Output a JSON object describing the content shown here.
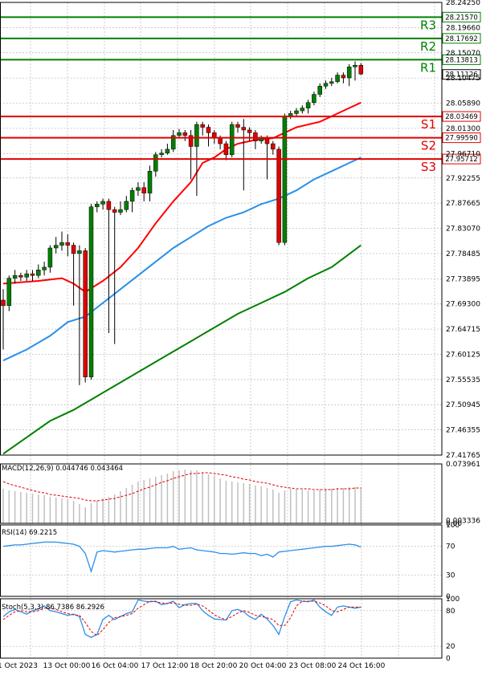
{
  "chart_data": [
    {
      "type": "candlestick",
      "panel": "price",
      "y_ticks": [
        "28.24250",
        "28.21570",
        "28.19660",
        "28.17692",
        "28.15070",
        "28.13813",
        "28.11126",
        "28.10475",
        "28.05890",
        "28.03469",
        "28.01300",
        "27.99590",
        "27.96710",
        "27.95712",
        "27.92255",
        "27.87665",
        "27.83070",
        "27.78485",
        "27.73895",
        "27.69300",
        "27.64715",
        "27.60125",
        "27.55535",
        "27.50945",
        "27.46355",
        "27.41765"
      ],
      "ylim": [
        27.41765,
        28.2425
      ],
      "levels": [
        {
          "name": "R3",
          "value": 28.2157,
          "label": "28.21570",
          "color": "#008000"
        },
        {
          "name": "R2",
          "value": 28.17692,
          "label": "28.17692",
          "color": "#008000"
        },
        {
          "name": "R1",
          "value": 28.13813,
          "label": "28.13813",
          "color": "#008000"
        },
        {
          "name": "S1",
          "value": 28.03469,
          "label": "28.03469",
          "color": "#e00000"
        },
        {
          "name": "S2",
          "value": 27.9959,
          "label": "27.99590",
          "color": "#e00000"
        },
        {
          "name": "S3",
          "value": 27.95712,
          "label": "27.95712",
          "color": "#e00000"
        }
      ],
      "last_price": {
        "value": 28.11126,
        "label": "28.11126"
      },
      "candles": [
        [
          27.7,
          27.69,
          27.72,
          27.61
        ],
        [
          27.69,
          27.74,
          27.745,
          27.68
        ],
        [
          27.74,
          27.745,
          27.755,
          27.73
        ],
        [
          27.745,
          27.742,
          27.75,
          27.735
        ],
        [
          27.742,
          27.748,
          27.755,
          27.735
        ],
        [
          27.748,
          27.745,
          27.755,
          27.735
        ],
        [
          27.745,
          27.755,
          27.765,
          27.74
        ],
        [
          27.755,
          27.76,
          27.77,
          27.745
        ],
        [
          27.76,
          27.795,
          27.8,
          27.75
        ],
        [
          27.795,
          27.8,
          27.815,
          27.785
        ],
        [
          27.8,
          27.805,
          27.825,
          27.79
        ],
        [
          27.805,
          27.8,
          27.82,
          27.78
        ],
        [
          27.8,
          27.785,
          27.805,
          27.69
        ],
        [
          27.785,
          27.79,
          27.8,
          27.545
        ],
        [
          27.79,
          27.56,
          27.795,
          27.55
        ],
        [
          27.56,
          27.87,
          27.875,
          27.555
        ],
        [
          27.87,
          27.875,
          27.88,
          27.86
        ],
        [
          27.875,
          27.88,
          27.885,
          27.865
        ],
        [
          27.88,
          27.865,
          27.885,
          27.64
        ],
        [
          27.865,
          27.86,
          27.87,
          27.62
        ],
        [
          27.86,
          27.865,
          27.88,
          27.855
        ],
        [
          27.865,
          27.88,
          27.89,
          27.86
        ],
        [
          27.88,
          27.9,
          27.905,
          27.86
        ],
        [
          27.9,
          27.905,
          27.915,
          27.89
        ],
        [
          27.905,
          27.895,
          27.915,
          27.88
        ],
        [
          27.895,
          27.935,
          27.945,
          27.88
        ],
        [
          27.935,
          27.965,
          27.97,
          27.925
        ],
        [
          27.965,
          27.968,
          27.975,
          27.96
        ],
        [
          27.968,
          27.975,
          27.985,
          27.965
        ],
        [
          27.975,
          28.0,
          28.01,
          27.97
        ],
        [
          28.0,
          28.005,
          28.012,
          27.995
        ],
        [
          28.005,
          28.0,
          28.01,
          27.99
        ],
        [
          28.0,
          27.98,
          28.01,
          27.92
        ],
        [
          27.98,
          28.02,
          28.025,
          27.89
        ],
        [
          28.02,
          28.015,
          28.025,
          28.0
        ],
        [
          28.015,
          28.005,
          28.02,
          27.98
        ],
        [
          28.005,
          27.995,
          28.01,
          27.985
        ],
        [
          27.995,
          27.985,
          28.0,
          27.975
        ],
        [
          27.985,
          27.965,
          27.99,
          27.955
        ],
        [
          27.965,
          28.02,
          28.025,
          27.96
        ],
        [
          28.02,
          28.015,
          28.025,
          28.005
        ],
        [
          28.015,
          28.01,
          28.03,
          27.9
        ],
        [
          28.01,
          28.005,
          28.015,
          27.99
        ],
        [
          28.005,
          27.99,
          28.01,
          27.975
        ],
        [
          27.99,
          27.995,
          28.0,
          27.985
        ],
        [
          27.995,
          27.985,
          28.0,
          27.92
        ],
        [
          27.985,
          27.975,
          27.99,
          27.965
        ],
        [
          27.975,
          27.805,
          27.98,
          27.8
        ],
        [
          27.805,
          28.035,
          28.04,
          27.8
        ],
        [
          28.035,
          28.04,
          28.045,
          28.03
        ],
        [
          28.04,
          28.045,
          28.05,
          28.035
        ],
        [
          28.045,
          28.05,
          28.055,
          28.04
        ],
        [
          28.05,
          28.06,
          28.065,
          28.04
        ],
        [
          28.06,
          28.075,
          28.08,
          28.055
        ],
        [
          28.075,
          28.09,
          28.095,
          28.07
        ],
        [
          28.09,
          28.095,
          28.1,
          28.085
        ],
        [
          28.095,
          28.098,
          28.105,
          28.09
        ],
        [
          28.098,
          28.11,
          28.115,
          28.095
        ],
        [
          28.11,
          28.105,
          28.115,
          28.095
        ],
        [
          28.105,
          28.125,
          28.13,
          28.09
        ],
        [
          28.125,
          28.128,
          28.135,
          28.1
        ],
        [
          28.128,
          28.112,
          28.132,
          28.11
        ]
      ],
      "moving_averages": [
        {
          "color": "#ff0000",
          "points": [
            [
              0,
              27.73
            ],
            [
              6,
              27.735
            ],
            [
              10,
              27.74
            ],
            [
              12,
              27.73
            ],
            [
              14,
              27.715
            ],
            [
              17,
              27.735
            ],
            [
              20,
              27.76
            ],
            [
              23,
              27.795
            ],
            [
              26,
              27.84
            ],
            [
              29,
              27.88
            ],
            [
              32,
              27.915
            ],
            [
              34,
              27.95
            ],
            [
              36,
              27.96
            ],
            [
              38,
              27.975
            ],
            [
              40,
              27.985
            ],
            [
              43,
              27.992
            ],
            [
              46,
              27.995
            ],
            [
              48,
              28.005
            ],
            [
              50,
              28.015
            ],
            [
              52,
              28.02
            ],
            [
              54,
              28.025
            ],
            [
              56,
              28.035
            ],
            [
              58,
              28.045
            ],
            [
              61,
              28.06
            ]
          ]
        },
        {
          "color": "#2a8fe8",
          "points": [
            [
              0,
              27.59
            ],
            [
              4,
              27.61
            ],
            [
              8,
              27.635
            ],
            [
              11,
              27.66
            ],
            [
              14,
              27.67
            ],
            [
              17,
              27.695
            ],
            [
              20,
              27.72
            ],
            [
              23,
              27.745
            ],
            [
              26,
              27.77
            ],
            [
              29,
              27.795
            ],
            [
              32,
              27.815
            ],
            [
              35,
              27.835
            ],
            [
              38,
              27.85
            ],
            [
              41,
              27.86
            ],
            [
              44,
              27.875
            ],
            [
              47,
              27.885
            ],
            [
              50,
              27.9
            ],
            [
              53,
              27.92
            ],
            [
              56,
              27.935
            ],
            [
              59,
              27.95
            ],
            [
              61,
              27.96
            ]
          ]
        },
        {
          "color": "#008000",
          "points": [
            [
              0,
              27.42
            ],
            [
              4,
              27.45
            ],
            [
              8,
              27.48
            ],
            [
              12,
              27.5
            ],
            [
              16,
              27.525
            ],
            [
              20,
              27.55
            ],
            [
              24,
              27.575
            ],
            [
              28,
              27.6
            ],
            [
              32,
              27.625
            ],
            [
              36,
              27.65
            ],
            [
              40,
              27.675
            ],
            [
              44,
              27.695
            ],
            [
              48,
              27.715
            ],
            [
              52,
              27.74
            ],
            [
              56,
              27.76
            ],
            [
              61,
              27.8
            ]
          ]
        }
      ]
    },
    {
      "type": "bar",
      "panel": "macd",
      "title": "MACD(12,26,9) 0.044746 0.043464",
      "y_ticks": [
        "0.073961",
        "0.003336",
        "0.00"
      ],
      "ylim": [
        0.0,
        0.073961
      ],
      "values": [
        0.043,
        0.041,
        0.04,
        0.039,
        0.038,
        0.037,
        0.036,
        0.035,
        0.033,
        0.032,
        0.031,
        0.03,
        0.028,
        0.024,
        0.02,
        0.025,
        0.028,
        0.031,
        0.033,
        0.036,
        0.04,
        0.044,
        0.048,
        0.052,
        0.054,
        0.056,
        0.058,
        0.06,
        0.062,
        0.065,
        0.066,
        0.067,
        0.066,
        0.066,
        0.063,
        0.061,
        0.059,
        0.056,
        0.053,
        0.052,
        0.051,
        0.05,
        0.049,
        0.047,
        0.046,
        0.044,
        0.042,
        0.038,
        0.041,
        0.043,
        0.042,
        0.042,
        0.041,
        0.041,
        0.042,
        0.043,
        0.043,
        0.044,
        0.044,
        0.045,
        0.045,
        0.045
      ],
      "signal": [
        0.052,
        0.049,
        0.047,
        0.045,
        0.043,
        0.041,
        0.039,
        0.038,
        0.036,
        0.035,
        0.034,
        0.033,
        0.032,
        0.031,
        0.029,
        0.028,
        0.028,
        0.029,
        0.03,
        0.031,
        0.033,
        0.035,
        0.037,
        0.04,
        0.043,
        0.045,
        0.048,
        0.051,
        0.053,
        0.056,
        0.058,
        0.06,
        0.062,
        0.062,
        0.063,
        0.063,
        0.062,
        0.061,
        0.06,
        0.058,
        0.057,
        0.055,
        0.054,
        0.052,
        0.051,
        0.05,
        0.048,
        0.046,
        0.045,
        0.044,
        0.043,
        0.043,
        0.043,
        0.042,
        0.042,
        0.042,
        0.042,
        0.043,
        0.043,
        0.043,
        0.044,
        0.044
      ]
    },
    {
      "type": "line",
      "panel": "rsi",
      "title": "RSI(14) 69.2215",
      "y_ticks": [
        "100",
        "70",
        "30",
        "0"
      ],
      "ylim": [
        0,
        100
      ],
      "values": [
        70,
        71,
        72,
        72,
        73,
        74,
        75,
        76,
        76,
        76,
        75,
        74,
        73,
        70,
        60,
        35,
        62,
        64,
        63,
        62,
        63,
        64,
        65,
        66,
        66,
        67,
        68,
        68,
        68,
        70,
        66,
        67,
        68,
        65,
        64,
        63,
        62,
        60,
        60,
        59,
        60,
        61,
        60,
        60,
        57,
        59,
        55,
        62,
        63,
        64,
        65,
        66,
        67,
        68,
        69,
        70,
        70,
        71,
        72,
        73,
        72,
        69
      ]
    },
    {
      "type": "line",
      "panel": "stoch",
      "title": "Stoch(5,3,3) 86.7386 86.2926",
      "y_ticks": [
        "100",
        "80",
        "20",
        "0"
      ],
      "ylim": [
        0,
        100
      ],
      "k": [
        70,
        78,
        82,
        78,
        74,
        80,
        83,
        88,
        80,
        78,
        75,
        72,
        74,
        70,
        40,
        35,
        40,
        65,
        72,
        65,
        70,
        75,
        78,
        98,
        96,
        95,
        96,
        90,
        92,
        96,
        85,
        90,
        92,
        92,
        80,
        72,
        66,
        65,
        64,
        80,
        82,
        78,
        70,
        65,
        74,
        66,
        55,
        40,
        70,
        95,
        98,
        96,
        95,
        98,
        86,
        78,
        72,
        86,
        88,
        86,
        84,
        86
      ],
      "d": [
        65,
        72,
        78,
        80,
        78,
        78,
        80,
        84,
        84,
        82,
        78,
        75,
        73,
        72,
        60,
        45,
        38,
        48,
        60,
        68,
        70,
        72,
        75,
        84,
        90,
        96,
        95,
        93,
        92,
        93,
        91,
        89,
        89,
        91,
        88,
        81,
        73,
        68,
        65,
        70,
        76,
        80,
        77,
        72,
        70,
        68,
        65,
        55,
        55,
        68,
        88,
        96,
        96,
        96,
        93,
        88,
        80,
        78,
        82,
        86,
        86,
        86
      ]
    }
  ],
  "x_labels": [
    "1 Oct 2023",
    "13 Oct 00:00",
    "16 Oct 04:00",
    "17 Oct 12:00",
    "18 Oct 20:00",
    "20 Oct 04:00",
    "23 Oct 08:00",
    "24 Oct 16:00"
  ],
  "colors": {
    "up": "#008000",
    "down": "#e00000",
    "grid": "#b8b8b8"
  }
}
